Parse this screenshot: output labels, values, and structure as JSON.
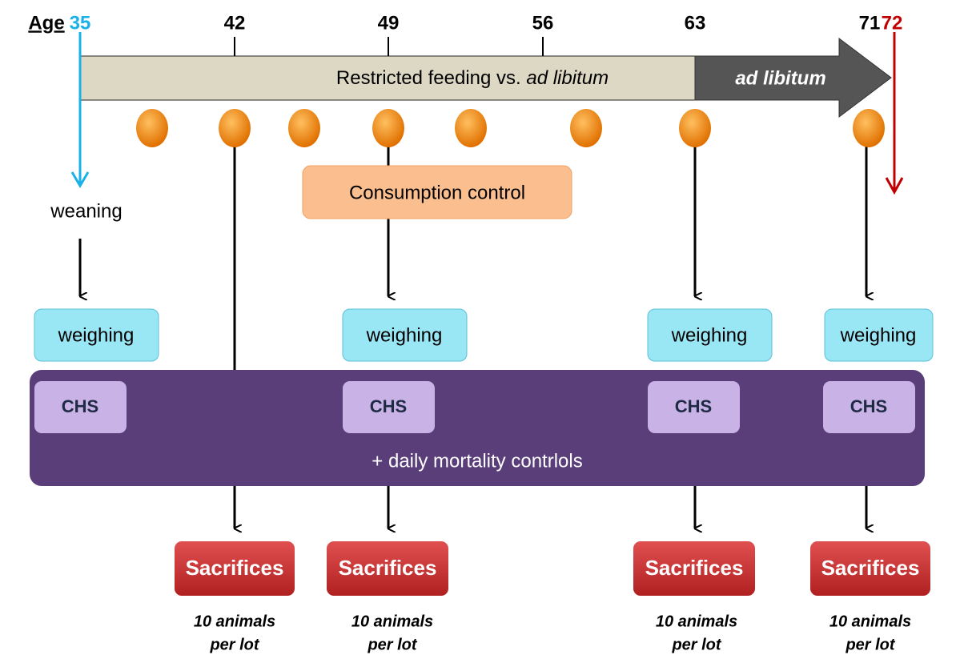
{
  "axis_label": "Age",
  "ages": [
    35,
    42,
    49,
    56,
    63,
    71,
    72
  ],
  "feeding_bar": {
    "text": "Restricted  feeding vs. ",
    "italic": "ad libitum"
  },
  "ad_libitum_arrow": "ad libitum",
  "weaning": "weaning",
  "consumption_control": "Consumption control",
  "weighing": [
    "weighing",
    "weighing",
    "weighing",
    "weighing"
  ],
  "chs": [
    "CHS",
    "CHS",
    "CHS",
    "CHS"
  ],
  "mortality": "+ daily mortality contrlols",
  "sacrifices": [
    {
      "label": "Sacrifices",
      "note": [
        "10 animals",
        "per lot"
      ]
    },
    {
      "label": "Sacrifices",
      "note": [
        "10 animals",
        "per lot"
      ]
    },
    {
      "label": "Sacrifices",
      "note": [
        "10 animals",
        "per lot"
      ]
    },
    {
      "label": "Sacrifices",
      "note": [
        "10 animals",
        "per lot"
      ]
    }
  ]
}
